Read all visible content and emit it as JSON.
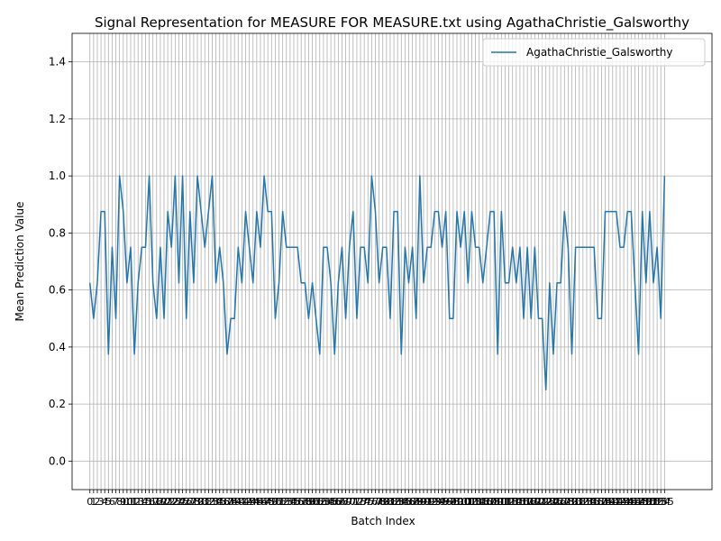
{
  "chart_data": {
    "type": "line",
    "title": "Signal Representation for MEASURE FOR MEASURE.txt using AgathaChristie_Galsworthy",
    "xlabel": "Batch Index",
    "ylabel": "Mean Prediction Value",
    "ylim": [
      -0.1,
      1.5
    ],
    "xlim": [
      -4.8,
      167.8
    ],
    "yticks": [
      0.0,
      0.2,
      0.4,
      0.6,
      0.8,
      1.0,
      1.2,
      1.4
    ],
    "ytick_labels": [
      "0.0",
      "0.2",
      "0.4",
      "0.6",
      "0.8",
      "1.0",
      "1.2",
      "1.4"
    ],
    "grid": true,
    "legend_placement": "top-right",
    "series": [
      {
        "name": "AgathaChristie_Galsworthy",
        "color": "#1f77b4",
        "values": [
          0.625,
          0.5,
          0.625,
          0.875,
          0.875,
          0.375,
          0.75,
          0.5,
          1.0,
          0.875,
          0.625,
          0.75,
          0.375,
          0.625,
          0.75,
          0.75,
          1.0,
          0.625,
          0.5,
          0.75,
          0.5,
          0.875,
          0.75,
          1.0,
          0.625,
          1.0,
          0.5,
          0.875,
          0.625,
          1.0,
          0.875,
          0.75,
          0.875,
          1.0,
          0.625,
          0.75,
          0.625,
          0.375,
          0.5,
          0.5,
          0.75,
          0.625,
          0.875,
          0.75,
          0.625,
          0.875,
          0.75,
          1.0,
          0.875,
          0.875,
          0.5,
          0.625,
          0.875,
          0.75,
          0.75,
          0.75,
          0.75,
          0.625,
          0.625,
          0.5,
          0.625,
          0.5,
          0.375,
          0.75,
          0.75,
          0.625,
          0.375,
          0.625,
          0.75,
          0.5,
          0.75,
          0.875,
          0.5,
          0.75,
          0.75,
          0.625,
          1.0,
          0.875,
          0.625,
          0.75,
          0.75,
          0.5,
          0.875,
          0.875,
          0.375,
          0.75,
          0.625,
          0.75,
          0.5,
          1.0,
          0.625,
          0.75,
          0.75,
          0.875,
          0.875,
          0.75,
          0.875,
          0.5,
          0.5,
          0.875,
          0.75,
          0.875,
          0.625,
          0.875,
          0.75,
          0.75,
          0.625,
          0.75,
          0.875,
          0.875,
          0.375,
          0.875,
          0.625,
          0.625,
          0.75,
          0.625,
          0.75,
          0.5,
          0.75,
          0.5,
          0.75,
          0.5,
          0.5,
          0.25,
          0.625,
          0.375,
          0.625,
          0.625,
          0.875,
          0.75,
          0.375,
          0.75,
          0.75,
          0.75,
          0.75,
          0.75,
          0.75,
          0.5,
          0.5,
          0.875,
          0.875,
          0.875,
          0.875,
          0.75,
          0.75,
          0.875,
          0.875,
          0.625,
          0.375,
          0.875,
          0.625,
          0.875,
          0.625,
          0.75,
          0.5,
          1.0
        ]
      }
    ]
  }
}
